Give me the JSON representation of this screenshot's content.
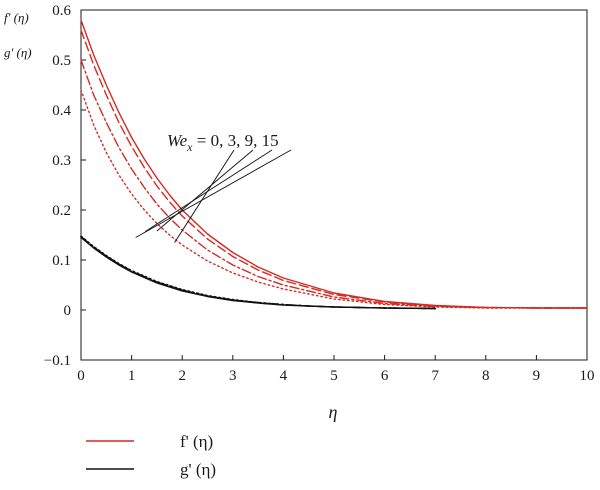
{
  "chart_data": {
    "type": "line",
    "xlabel": "η",
    "ylabel_lines": [
      "f' (η)",
      "g' (η)"
    ],
    "xlim": [
      0,
      10
    ],
    "ylim": [
      -0.1,
      0.6
    ],
    "x_ticks": [
      0,
      1,
      2,
      3,
      4,
      5,
      6,
      7,
      8,
      9,
      10
    ],
    "y_ticks": [
      -0.1,
      0,
      0.1,
      0.2,
      0.3,
      0.4,
      0.5,
      0.6
    ],
    "y_tick_labels": [
      "−0.1",
      "0",
      "0.1",
      "0.2",
      "0.3",
      "0.4",
      "0.5",
      "0.6"
    ],
    "grid": false,
    "annotation": {
      "prefix": "We",
      "subscript": "x",
      "values_text": " = 0, 3, 9, 15"
    },
    "legend": {
      "placement": "bottom-left",
      "entries": [
        {
          "label": "f' (η)",
          "color": "#d42a22"
        },
        {
          "label": "g' (η)",
          "color": "#111111"
        }
      ]
    },
    "series": [
      {
        "group": "f'",
        "we": 0,
        "color": "#d42a22",
        "dash": "solid",
        "x": [
          0,
          0.25,
          0.5,
          0.75,
          1,
          1.25,
          1.5,
          1.75,
          2,
          2.5,
          3,
          3.5,
          4,
          5,
          6,
          7,
          8,
          9,
          10
        ],
        "y": [
          0.58,
          0.51,
          0.45,
          0.395,
          0.345,
          0.302,
          0.264,
          0.23,
          0.2,
          0.152,
          0.115,
          0.086,
          0.064,
          0.034,
          0.017,
          0.009,
          0.005,
          0.004,
          0.004
        ]
      },
      {
        "group": "f'",
        "we": 3,
        "color": "#d42a22",
        "dash": "dash",
        "x": [
          0,
          0.25,
          0.5,
          0.75,
          1,
          1.25,
          1.5,
          1.75,
          2,
          2.5,
          3,
          3.5,
          4,
          5,
          6,
          7,
          8,
          9,
          10
        ],
        "y": [
          0.56,
          0.49,
          0.43,
          0.375,
          0.327,
          0.285,
          0.248,
          0.216,
          0.188,
          0.142,
          0.107,
          0.08,
          0.059,
          0.031,
          0.016,
          0.008,
          0.005,
          0.004,
          0.004
        ]
      },
      {
        "group": "f'",
        "we": 9,
        "color": "#d42a22",
        "dash": "dashdot",
        "x": [
          0,
          0.25,
          0.5,
          0.75,
          1,
          1.25,
          1.5,
          1.75,
          2,
          2.5,
          3,
          3.5,
          4,
          5,
          6,
          7,
          8,
          9,
          10
        ],
        "y": [
          0.5,
          0.43,
          0.375,
          0.325,
          0.282,
          0.245,
          0.212,
          0.184,
          0.16,
          0.12,
          0.09,
          0.067,
          0.05,
          0.026,
          0.013,
          0.007,
          0.005,
          0.004,
          0.004
        ]
      },
      {
        "group": "f'",
        "we": 15,
        "color": "#d42a22",
        "dash": "dot",
        "x": [
          0,
          0.25,
          0.5,
          0.75,
          1,
          1.25,
          1.5,
          1.75,
          2,
          2.5,
          3,
          3.5,
          4,
          5,
          6,
          7,
          8,
          9,
          10
        ],
        "y": [
          0.44,
          0.37,
          0.315,
          0.27,
          0.232,
          0.2,
          0.173,
          0.15,
          0.13,
          0.098,
          0.074,
          0.056,
          0.042,
          0.022,
          0.011,
          0.006,
          0.004,
          0.004,
          0.004
        ]
      },
      {
        "group": "g'",
        "we": 0,
        "color": "#111111",
        "dash": "solid",
        "x": [
          0,
          0.25,
          0.5,
          0.75,
          1,
          1.5,
          2,
          2.5,
          3,
          3.5,
          4,
          4.5,
          5,
          6,
          7
        ],
        "y": [
          0.145,
          0.124,
          0.106,
          0.09,
          0.076,
          0.054,
          0.038,
          0.027,
          0.019,
          0.014,
          0.01,
          0.008,
          0.006,
          0.004,
          0.003
        ]
      },
      {
        "group": "g'",
        "we": 3,
        "color": "#111111",
        "dash": "dash",
        "x": [
          0,
          0.25,
          0.5,
          0.75,
          1,
          1.5,
          2,
          2.5,
          3,
          3.5,
          4,
          4.5,
          5,
          6,
          7
        ],
        "y": [
          0.146,
          0.125,
          0.107,
          0.091,
          0.077,
          0.055,
          0.039,
          0.028,
          0.02,
          0.014,
          0.01,
          0.008,
          0.006,
          0.004,
          0.003
        ]
      },
      {
        "group": "g'",
        "we": 9,
        "color": "#111111",
        "dash": "dashdot",
        "x": [
          0,
          0.25,
          0.5,
          0.75,
          1,
          1.5,
          2,
          2.5,
          3,
          3.5,
          4,
          4.5,
          5,
          6,
          7
        ],
        "y": [
          0.147,
          0.126,
          0.108,
          0.092,
          0.078,
          0.056,
          0.04,
          0.028,
          0.02,
          0.015,
          0.011,
          0.008,
          0.006,
          0.004,
          0.003
        ]
      },
      {
        "group": "g'",
        "we": 15,
        "color": "#111111",
        "dash": "dot",
        "x": [
          0,
          0.25,
          0.5,
          0.75,
          1,
          1.5,
          2,
          2.5,
          3,
          3.5,
          4,
          4.5,
          5,
          6,
          7
        ],
        "y": [
          0.148,
          0.127,
          0.109,
          0.093,
          0.079,
          0.057,
          0.041,
          0.029,
          0.021,
          0.015,
          0.011,
          0.008,
          0.006,
          0.004,
          0.003
        ]
      }
    ],
    "annotation_targets": [
      {
        "we": 0,
        "x": 1.85,
        "y": 0.135
      },
      {
        "we": 3,
        "x": 1.5,
        "y": 0.158
      },
      {
        "we": 9,
        "x": 1.27,
        "y": 0.157
      },
      {
        "we": 15,
        "x": 1.08,
        "y": 0.145
      }
    ]
  }
}
